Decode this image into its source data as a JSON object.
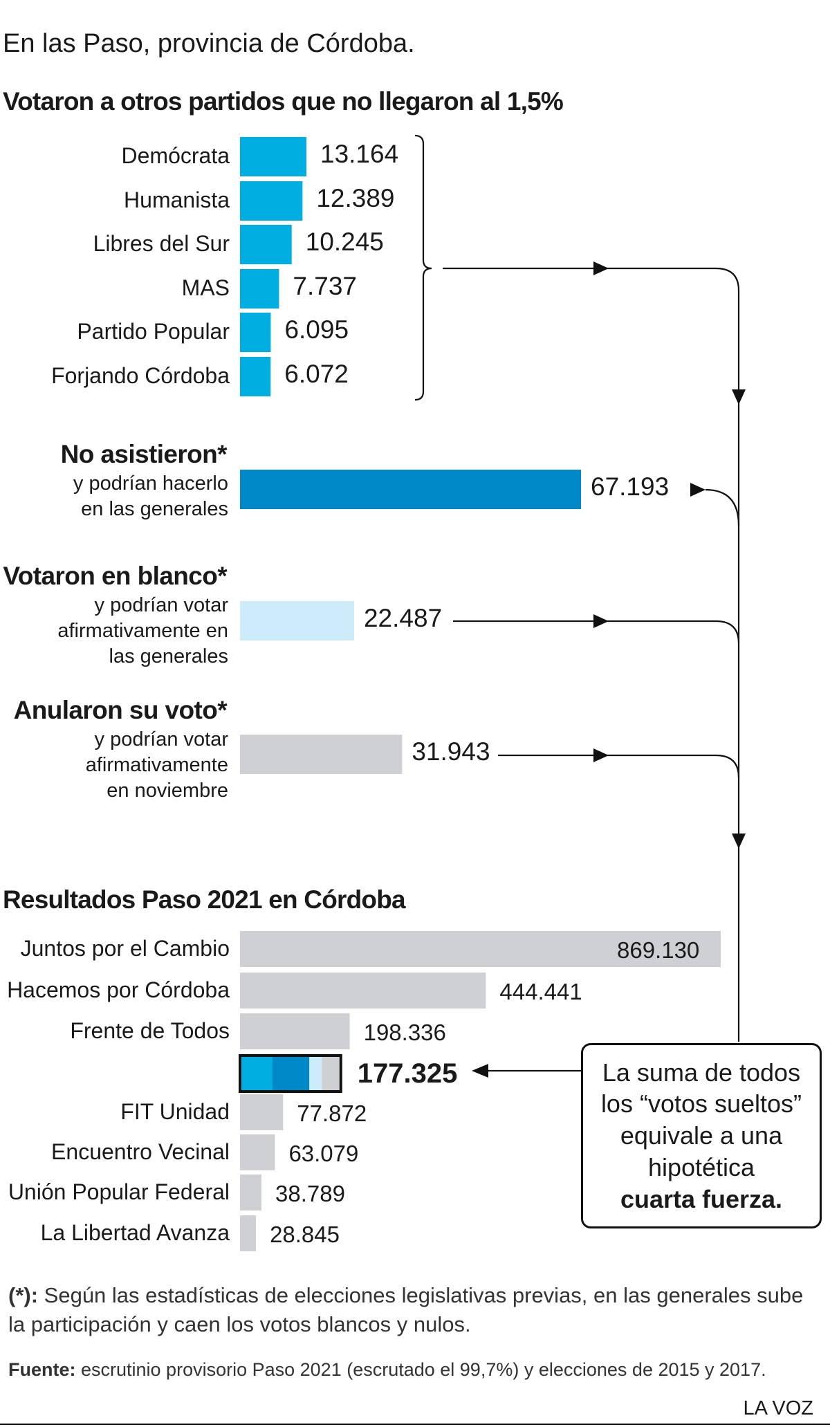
{
  "header": {
    "subtitle": "En las Paso, provincia de Córdoba.",
    "section1_title": "Votaron a otros partidos que no llegaron al 1,5%",
    "section2_title": "Resultados Paso 2021 en Córdoba"
  },
  "colors": {
    "cyan": "#00aee2",
    "blue": "#0089c8",
    "light_blue": "#cdebf8",
    "gray": "#cfd0d4",
    "ink": "#111111"
  },
  "chart_data": [
    {
      "type": "bar",
      "title": "Votaron a otros partidos que no llegaron al 1,5%",
      "categories": [
        "Demócrata",
        "Humanista",
        "Libres del Sur",
        "MAS",
        "Partido Popular",
        "Forjando Córdoba"
      ],
      "values": [
        13164,
        12389,
        10245,
        7737,
        6095,
        6072
      ],
      "value_labels": [
        "13.164",
        "12.389",
        "10.245",
        "7.737",
        "6.095",
        "6.072"
      ],
      "color": "#00aee2"
    },
    {
      "type": "bar",
      "categories": [
        "No asistieron*",
        "Votaron en blanco*",
        "Anularon su voto*"
      ],
      "descriptions": [
        [
          "y podrían hacerlo",
          "en las generales"
        ],
        [
          "y podrían votar",
          "afirmativamente en",
          "las generales"
        ],
        [
          "y podrían votar",
          "afirmativamente",
          "en noviembre"
        ]
      ],
      "values": [
        67193,
        22487,
        31943
      ],
      "value_labels": [
        "67.193",
        "22.487",
        "31.943"
      ],
      "colors": [
        "#0089c8",
        "#cdebf8",
        "#cfd0d4"
      ]
    },
    {
      "type": "bar",
      "title": "Resultados Paso 2021 en Córdoba",
      "categories": [
        "Juntos por el Cambio",
        "Hacemos por Córdoba",
        "Frente de Todos",
        "",
        "FIT Unidad",
        "Encuentro Vecinal",
        "Unión Popular Federal",
        "La Libertad Avanza"
      ],
      "values": [
        869130,
        444441,
        198336,
        177325,
        77872,
        63079,
        38789,
        28845
      ],
      "value_labels": [
        "869.130",
        "444.441",
        "198.336",
        "177.325",
        "77.872",
        "63.079",
        "38.789",
        "28.845"
      ],
      "stacked_segments": [
        {
          "name": "Otros partidos",
          "value": 55702,
          "color": "#00aee2"
        },
        {
          "name": "No asistieron",
          "value": 67193,
          "color": "#0089c8"
        },
        {
          "name": "Votaron en blanco",
          "value": 22487,
          "color": "#cdebf8"
        },
        {
          "name": "Anularon su voto",
          "value": 31943,
          "color": "#cfd0d4"
        }
      ]
    }
  ],
  "callout": {
    "line1": "La suma de todos",
    "line2": "los “votos sueltos”",
    "line3": "equivale a una",
    "line4": "hipotética",
    "line5_bold": "cuarta fuerza."
  },
  "footer": {
    "note_marker": "(*):",
    "note_text": " Según las estadísticas de elecciones legislativas previas, en las generales sube la participación y caen los votos blancos y nulos.",
    "source_label": "Fuente:",
    "source_text": " escrutinio provisorio Paso 2021 (escrutado el 99,7%) y elecciones de 2015 y 2017.",
    "brand": "LA VOZ"
  }
}
